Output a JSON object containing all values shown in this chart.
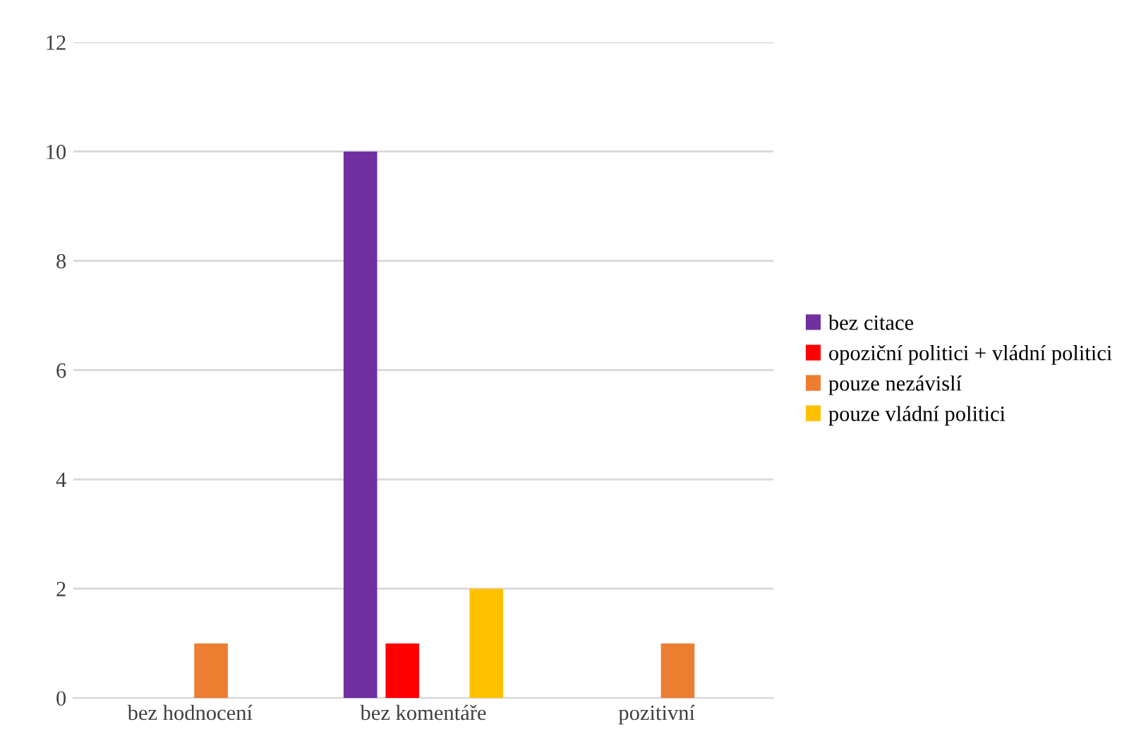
{
  "chart_data": {
    "type": "bar",
    "categories": [
      "bez hodnocení",
      "bez komentáře",
      "pozitivní"
    ],
    "series": [
      {
        "name": "bez citace",
        "color": "#7030a0",
        "values": [
          null,
          10,
          null
        ]
      },
      {
        "name": "opoziční politici + vládní politici",
        "color": "#ff0000",
        "values": [
          null,
          1,
          null
        ]
      },
      {
        "name": "pouze nezávislí",
        "color": "#ed7d31",
        "values": [
          1,
          null,
          1
        ]
      },
      {
        "name": "pouze vládní politici",
        "color": "#ffc000",
        "values": [
          null,
          2,
          null
        ]
      }
    ],
    "ylim": [
      0,
      12
    ],
    "yticks": [
      0,
      2,
      4,
      6,
      8,
      10,
      12
    ],
    "grid": "y",
    "legend": "right"
  }
}
